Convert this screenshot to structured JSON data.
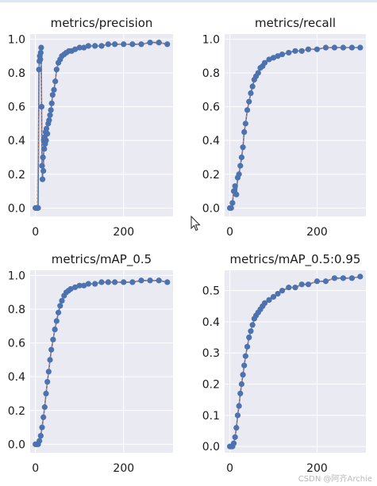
{
  "watermark": "CSDN @阿齐Archie",
  "chart_data": [
    {
      "type": "line",
      "title": "metrics/precision",
      "xlim": [
        -12,
        312
      ],
      "ylim": [
        -0.05,
        1.03
      ],
      "xticks": [
        0,
        200
      ],
      "yticks": [
        0.0,
        0.2,
        0.4,
        0.6,
        0.8,
        1.0
      ],
      "ytick_labels": [
        "0.0",
        "0.2",
        "0.4",
        "0.6",
        "0.8",
        "1.0"
      ],
      "series": [
        {
          "x": [
            0,
            2,
            4,
            6,
            8,
            9,
            10,
            11,
            12,
            13,
            14,
            15,
            16,
            17,
            18,
            19,
            20,
            21,
            22,
            23,
            24,
            25,
            27,
            29,
            31,
            33,
            35,
            37,
            39,
            42,
            45,
            48,
            52,
            56,
            60,
            65,
            70,
            76,
            82,
            90,
            100,
            110,
            120,
            135,
            150,
            165,
            180,
            200,
            220,
            240,
            260,
            280,
            299
          ],
          "y": [
            0.0,
            0.0,
            0.0,
            0.0,
            0.82,
            0.87,
            0.9,
            0.88,
            0.92,
            0.95,
            0.6,
            0.25,
            0.17,
            0.3,
            0.22,
            0.4,
            0.35,
            0.42,
            0.38,
            0.45,
            0.4,
            0.47,
            0.44,
            0.5,
            0.52,
            0.55,
            0.58,
            0.62,
            0.67,
            0.7,
            0.75,
            0.82,
            0.86,
            0.88,
            0.9,
            0.91,
            0.92,
            0.93,
            0.93,
            0.94,
            0.95,
            0.95,
            0.96,
            0.96,
            0.96,
            0.97,
            0.97,
            0.97,
            0.97,
            0.97,
            0.98,
            0.98,
            0.97
          ]
        }
      ]
    },
    {
      "type": "line",
      "title": "metrics/recall",
      "xlim": [
        -12,
        312
      ],
      "ylim": [
        -0.05,
        1.03
      ],
      "xticks": [
        0,
        200
      ],
      "yticks": [
        0.0,
        0.2,
        0.4,
        0.6,
        0.8,
        1.0
      ],
      "ytick_labels": [
        "0.0",
        "0.2",
        "0.4",
        "0.6",
        "0.8",
        "1.0"
      ],
      "series": [
        {
          "x": [
            0,
            3,
            6,
            9,
            12,
            15,
            18,
            21,
            24,
            27,
            30,
            33,
            36,
            40,
            44,
            48,
            52,
            56,
            60,
            65,
            70,
            75,
            80,
            90,
            100,
            110,
            120,
            135,
            150,
            165,
            180,
            200,
            220,
            240,
            260,
            280,
            299
          ],
          "y": [
            0.0,
            0.0,
            0.03,
            0.1,
            0.13,
            0.08,
            0.18,
            0.2,
            0.25,
            0.3,
            0.36,
            0.45,
            0.5,
            0.58,
            0.63,
            0.68,
            0.72,
            0.76,
            0.78,
            0.8,
            0.83,
            0.84,
            0.86,
            0.88,
            0.89,
            0.9,
            0.91,
            0.92,
            0.93,
            0.93,
            0.94,
            0.94,
            0.95,
            0.95,
            0.95,
            0.95,
            0.95
          ]
        }
      ]
    },
    {
      "type": "line",
      "title": "metrics/mAP_0.5",
      "xlim": [
        -12,
        312
      ],
      "ylim": [
        -0.05,
        1.03
      ],
      "xticks": [
        0,
        200
      ],
      "yticks": [
        0.0,
        0.2,
        0.4,
        0.6,
        0.8,
        1.0
      ],
      "ytick_labels": [
        "0.0",
        "0.2",
        "0.4",
        "0.6",
        "0.8",
        "1.0"
      ],
      "series": [
        {
          "x": [
            0,
            3,
            6,
            9,
            12,
            15,
            18,
            21,
            24,
            27,
            30,
            33,
            36,
            40,
            44,
            48,
            52,
            56,
            60,
            65,
            70,
            75,
            80,
            90,
            100,
            110,
            120,
            135,
            150,
            165,
            180,
            200,
            220,
            240,
            260,
            280,
            299
          ],
          "y": [
            0.0,
            0.0,
            0.0,
            0.02,
            0.05,
            0.1,
            0.16,
            0.22,
            0.3,
            0.37,
            0.43,
            0.5,
            0.56,
            0.62,
            0.68,
            0.73,
            0.78,
            0.82,
            0.85,
            0.88,
            0.9,
            0.91,
            0.92,
            0.93,
            0.94,
            0.94,
            0.95,
            0.95,
            0.96,
            0.96,
            0.96,
            0.96,
            0.96,
            0.97,
            0.97,
            0.97,
            0.96
          ]
        }
      ]
    },
    {
      "type": "line",
      "title": "metrics/mAP_0.5:0.95",
      "xlim": [
        -12,
        312
      ],
      "ylim": [
        -0.02,
        0.565
      ],
      "xticks": [
        0,
        200
      ],
      "yticks": [
        0.0,
        0.1,
        0.2,
        0.3,
        0.4,
        0.5
      ],
      "ytick_labels": [
        "0.0",
        "0.1",
        "0.2",
        "0.3",
        "0.4",
        "0.5"
      ],
      "series": [
        {
          "x": [
            0,
            3,
            6,
            9,
            12,
            15,
            18,
            21,
            24,
            27,
            30,
            33,
            36,
            40,
            44,
            48,
            52,
            56,
            60,
            65,
            70,
            75,
            80,
            90,
            100,
            110,
            120,
            135,
            150,
            165,
            180,
            200,
            220,
            240,
            260,
            280,
            299
          ],
          "y": [
            0.0,
            0.0,
            0.0,
            0.01,
            0.03,
            0.06,
            0.1,
            0.13,
            0.17,
            0.2,
            0.23,
            0.26,
            0.29,
            0.32,
            0.35,
            0.37,
            0.39,
            0.41,
            0.42,
            0.43,
            0.44,
            0.45,
            0.46,
            0.47,
            0.48,
            0.49,
            0.5,
            0.51,
            0.51,
            0.52,
            0.52,
            0.53,
            0.53,
            0.54,
            0.54,
            0.54,
            0.545
          ]
        }
      ]
    }
  ]
}
